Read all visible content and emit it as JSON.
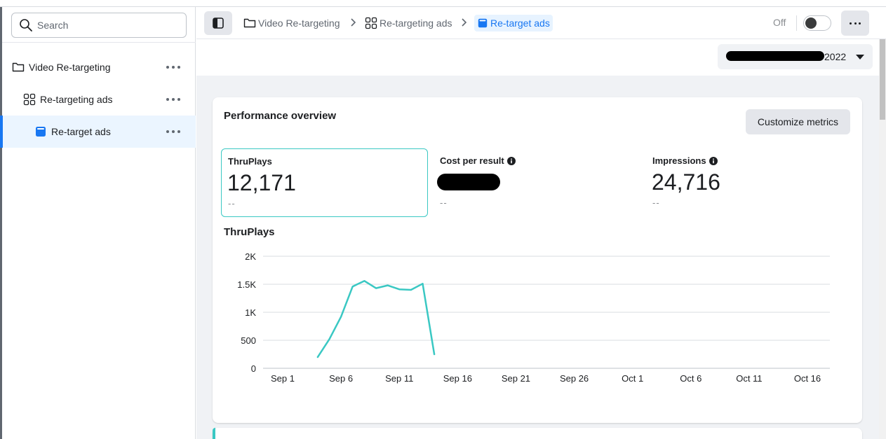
{
  "sidebar": {
    "search_placeholder": "Search",
    "items": [
      {
        "label": "Video Re-targeting",
        "icon": "folder-icon"
      },
      {
        "label": "Re-targeting ads",
        "icon": "grid-icon"
      },
      {
        "label": "Re-target ads",
        "icon": "ad-icon"
      }
    ]
  },
  "breadcrumb": {
    "items": [
      {
        "label": "Video Re-targeting",
        "icon": "folder-icon"
      },
      {
        "label": "Re-targeting ads",
        "icon": "grid-icon"
      },
      {
        "label": "Re-target ads",
        "icon": "ad-icon"
      }
    ]
  },
  "header": {
    "toggle_label": "Off",
    "toggle_on": false,
    "date_suffix": "2022"
  },
  "overview": {
    "title": "Performance overview",
    "customize_label": "Customize metrics",
    "metrics": [
      {
        "label": "ThruPlays",
        "value": "12,171",
        "sub": "--"
      },
      {
        "label": "Cost per result",
        "value": "",
        "sub": "--"
      },
      {
        "label": "Impressions",
        "value": "24,716",
        "sub": "--"
      }
    ]
  },
  "chart_data": {
    "type": "line",
    "title": "ThruPlays",
    "ylim": [
      0,
      2000
    ],
    "y_ticks": [
      0,
      500,
      1000,
      1500,
      2000
    ],
    "y_tick_labels": [
      "0",
      "500",
      "1K",
      "1.5K",
      "2K"
    ],
    "x_tick_labels": [
      "Sep 1",
      "Sep 6",
      "Sep 11",
      "Sep 16",
      "Sep 21",
      "Sep 26",
      "Oct 1",
      "Oct 6",
      "Oct 11",
      "Oct 16"
    ],
    "x_start": "2022-09-01",
    "x_end": "2022-10-16",
    "series": [
      {
        "color": "#3ac8c3",
        "points": [
          {
            "x": "2022-09-04",
            "y": 200
          },
          {
            "x": "2022-09-05",
            "y": 520
          },
          {
            "x": "2022-09-06",
            "y": 920
          },
          {
            "x": "2022-09-07",
            "y": 1460
          },
          {
            "x": "2022-09-08",
            "y": 1560
          },
          {
            "x": "2022-09-09",
            "y": 1430
          },
          {
            "x": "2022-09-10",
            "y": 1480
          },
          {
            "x": "2022-09-11",
            "y": 1410
          },
          {
            "x": "2022-09-12",
            "y": 1400
          },
          {
            "x": "2022-09-13",
            "y": 1510
          },
          {
            "x": "2022-09-14",
            "y": 250
          }
        ]
      }
    ],
    "grid": true,
    "legend": "none"
  }
}
